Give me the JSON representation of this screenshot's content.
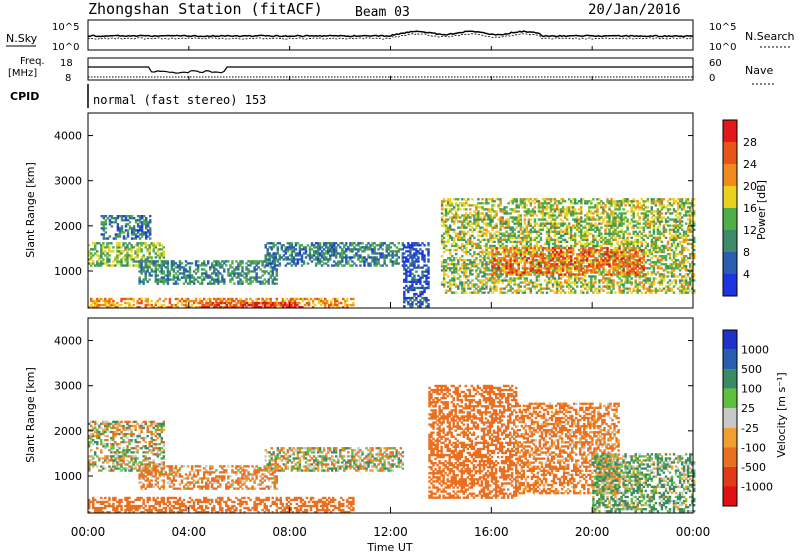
{
  "header": {
    "station": "Zhongshan Station (fitACF)",
    "beam": "Beam 03",
    "date": "20/Jan/2016"
  },
  "noise_panel": {
    "left_label": "N.Sky",
    "right_label": "N.Search",
    "left_ticks": [
      "10^5",
      "10^0"
    ],
    "right_ticks": [
      "10^5",
      "10^0"
    ]
  },
  "freq_panel": {
    "left_label_1": "Freq.",
    "left_label_2": "[MHz]",
    "right_label": "Nave",
    "left_ticks": [
      "18",
      "8"
    ],
    "right_ticks": [
      "60",
      "0"
    ]
  },
  "cpid_panel": {
    "label": "CPID",
    "text": "normal (fast stereo) 153"
  },
  "power_panel": {
    "ylabel": "Slant Range [km]",
    "yticks": [
      "1000",
      "2000",
      "3000",
      "4000"
    ],
    "colorbar_label": "Power [dB]",
    "colorbar_ticks": [
      "4",
      "8",
      "12",
      "16",
      "20",
      "24",
      "28"
    ],
    "colors": [
      "#1f34e0",
      "#2a5db0",
      "#3c8a6a",
      "#4fae4a",
      "#e9d21f",
      "#f08a1c",
      "#e8541a",
      "#e01a1a"
    ]
  },
  "velocity_panel": {
    "ylabel": "Slant Range [km]",
    "yticks": [
      "1000",
      "2000",
      "3000",
      "4000"
    ],
    "colorbar_label": "Velocity [m s⁻¹]",
    "colorbar_ticks": [
      "1000",
      "500",
      "100",
      "25",
      "-25",
      "-100",
      "-500",
      "-1000"
    ],
    "colors": [
      "#2033c8",
      "#2a5db0",
      "#3a8a64",
      "#5fc040",
      "#c8c8c8",
      "#f0a030",
      "#e87020",
      "#e03a18",
      "#e01010"
    ]
  },
  "x_axis": {
    "label": "Time UT",
    "ticks": [
      "00:00",
      "04:00",
      "08:00",
      "12:00",
      "16:00",
      "20:00",
      "00:00"
    ]
  },
  "chart_data": {
    "type": "heatmap",
    "title": "Zhongshan Station (fitACF)   Beam 03   20/Jan/2016",
    "xlabel": "Time UT",
    "ylabel": "Slant Range [km]",
    "xlim": [
      "00:00",
      "24:00"
    ],
    "ylim": [
      180,
      4500
    ],
    "panels": [
      {
        "name": "Power",
        "units": "dB",
        "colorbar_range": [
          0,
          30
        ],
        "regions": [
          {
            "t": [
              0.0,
              3.0
            ],
            "r": [
              1100,
              1600
            ],
            "level": 14
          },
          {
            "t": [
              0.5,
              2.5
            ],
            "r": [
              1700,
              2200
            ],
            "level": 8
          },
          {
            "t": [
              0.0,
              10.5
            ],
            "r": [
              180,
              400
            ],
            "level": 22
          },
          {
            "t": [
              4.5,
              8.5
            ],
            "r": [
              180,
              300
            ],
            "level": 28
          },
          {
            "t": [
              2.0,
              7.5
            ],
            "r": [
              700,
              1200
            ],
            "level": 10
          },
          {
            "t": [
              7.0,
              12.5
            ],
            "r": [
              1100,
              1600
            ],
            "level": 9
          },
          {
            "t": [
              12.5,
              13.5
            ],
            "r": [
              200,
              1600
            ],
            "level": 4
          },
          {
            "t": [
              14.0,
              24.0
            ],
            "r": [
              500,
              2600
            ],
            "level": 16
          },
          {
            "t": [
              16.0,
              22.0
            ],
            "r": [
              900,
              1500
            ],
            "level": 24
          }
        ]
      },
      {
        "name": "Velocity",
        "units": "m s-1",
        "colorbar_range": [
          -1000,
          1000
        ],
        "regions": [
          {
            "t": [
              0.0,
              3.0
            ],
            "r": [
              1100,
              2200
            ],
            "value": 0
          },
          {
            "t": [
              0.0,
              10.5
            ],
            "r": [
              180,
              500
            ],
            "value": -300
          },
          {
            "t": [
              2.0,
              7.5
            ],
            "r": [
              700,
              1200
            ],
            "value": -150
          },
          {
            "t": [
              7.0,
              12.5
            ],
            "r": [
              1100,
              1600
            ],
            "value": 0
          },
          {
            "t": [
              13.5,
              17.0
            ],
            "r": [
              500,
              3000
            ],
            "value": -300
          },
          {
            "t": [
              17.0,
              21.0
            ],
            "r": [
              600,
              2600
            ],
            "value": -200
          },
          {
            "t": [
              20.0,
              24.0
            ],
            "r": [
              200,
              1500
            ],
            "value": 100
          }
        ]
      }
    ],
    "grid": false
  }
}
